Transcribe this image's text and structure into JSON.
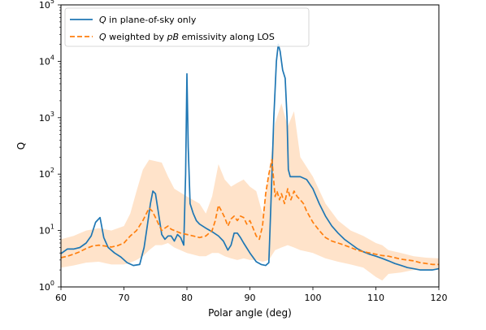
{
  "chart_data": {
    "type": "line",
    "xlabel": "Polar angle (deg)",
    "ylabel": "Q",
    "yscale": "log",
    "xlim": [
      60,
      120
    ],
    "ylim": [
      1,
      100000
    ],
    "x_ticks": [
      60,
      70,
      80,
      90,
      100,
      110,
      120
    ],
    "y_ticks": [
      {
        "value": 1,
        "base": "10",
        "exp": "0"
      },
      {
        "value": 10,
        "base": "10",
        "exp": "1"
      },
      {
        "value": 100,
        "base": "10",
        "exp": "2"
      },
      {
        "value": 1000,
        "base": "10",
        "exp": "3"
      },
      {
        "value": 10000,
        "base": "10",
        "exp": "4"
      },
      {
        "value": 100000,
        "base": "10",
        "exp": "5"
      }
    ],
    "legend_position": "top-left",
    "legend": [
      {
        "parts": [
          {
            "text": "Q",
            "italic": true
          },
          {
            "text": " in plane-of-sky only",
            "italic": false
          }
        ],
        "color": "#1f77b4",
        "style": "solid"
      },
      {
        "parts": [
          {
            "text": "Q",
            "italic": true
          },
          {
            "text": " weighted by ",
            "italic": false
          },
          {
            "text": "pB",
            "italic": true
          },
          {
            "text": " emissivity along LOS",
            "italic": false
          }
        ],
        "color": "#ff7f0e",
        "style": "dashed"
      }
    ],
    "series": [
      {
        "name": "Q in plane-of-sky only",
        "color": "#1f77b4",
        "style": "solid",
        "x": [
          60,
          61,
          62,
          63,
          64,
          64.8,
          65.5,
          66.2,
          66.8,
          67.5,
          68.5,
          69.5,
          70.5,
          71.5,
          72.5,
          73.2,
          73.7,
          74.2,
          74.6,
          75.0,
          75.5,
          76.0,
          76.5,
          77.0,
          77.5,
          78.0,
          78.5,
          79.0,
          79.5,
          79.8,
          80.0,
          80.2,
          80.5,
          81.0,
          81.5,
          82.0,
          83.0,
          84.0,
          85.0,
          85.8,
          86.5,
          87.0,
          87.5,
          88.0,
          88.5,
          89.0,
          90.0,
          91.0,
          91.8,
          92.5,
          93.0,
          93.4,
          93.8,
          94.2,
          94.5,
          94.8,
          95.2,
          95.6,
          95.9,
          96.1,
          96.4,
          97.0,
          98.0,
          99.0,
          100.0,
          101.0,
          102.0,
          103.0,
          104.0,
          105.0,
          106.0,
          107.0,
          108.0,
          109.0,
          110.0,
          111.0,
          112.0,
          113.0,
          114.0,
          115.0,
          116.0,
          117.0,
          118.0,
          119.0,
          120.0
        ],
        "y": [
          3.9,
          4.7,
          4.7,
          5.0,
          6.0,
          8.0,
          14.0,
          17.0,
          7.5,
          5.0,
          4.0,
          3.4,
          2.7,
          2.4,
          2.5,
          5.0,
          12.0,
          30.0,
          50.0,
          45.0,
          20.0,
          8.5,
          7.0,
          8.0,
          8.0,
          6.5,
          8.5,
          7.5,
          5.5,
          100.0,
          6000.0,
          300.0,
          30.0,
          20.0,
          15.0,
          13.0,
          11.0,
          9.5,
          8.0,
          6.5,
          4.5,
          5.5,
          9.0,
          9.0,
          7.5,
          6.0,
          4.0,
          2.8,
          2.5,
          2.4,
          2.7,
          50.0,
          1000.0,
          10000.0,
          20000.0,
          15000.0,
          7000.0,
          5000.0,
          1000.0,
          120.0,
          90.0,
          90.0,
          90.0,
          80.0,
          55.0,
          30.0,
          18.0,
          12.0,
          9.0,
          7.0,
          5.8,
          4.8,
          4.2,
          3.8,
          3.5,
          3.2,
          2.9,
          2.6,
          2.4,
          2.2,
          2.1,
          2.0,
          2.0,
          2.0,
          2.1
        ]
      },
      {
        "name": "Q weighted by pB emissivity along LOS",
        "color": "#ff7f0e",
        "style": "dashed",
        "x": [
          60,
          61,
          62,
          63,
          64,
          65,
          66,
          67,
          68,
          69,
          70,
          71,
          72,
          73,
          74,
          74.5,
          75,
          75.5,
          76,
          76.5,
          77,
          77.5,
          78,
          79,
          80,
          81,
          82,
          83,
          84,
          84.5,
          85,
          85.5,
          86,
          86.5,
          87,
          87.5,
          88,
          88.5,
          89,
          89.5,
          90,
          90.5,
          91,
          91.5,
          92,
          92.5,
          93,
          93.5,
          94,
          94.3,
          94.7,
          95,
          95.5,
          96,
          96.5,
          97,
          97.5,
          98,
          98.5,
          99,
          100,
          101,
          102,
          103,
          104,
          105,
          106,
          107,
          108,
          109,
          110,
          111,
          112,
          113,
          114,
          115,
          116,
          117,
          118,
          119,
          120
        ],
        "y": [
          3.3,
          3.5,
          3.8,
          4.2,
          4.8,
          5.3,
          5.5,
          5.3,
          5.1,
          5.4,
          6.0,
          8.0,
          10.0,
          15.0,
          25.0,
          22.0,
          17.0,
          13.0,
          10.0,
          11.0,
          12.0,
          10.5,
          10.0,
          9.0,
          8.5,
          8.0,
          7.5,
          8.0,
          10.0,
          15.0,
          28.0,
          22.0,
          17.0,
          12.0,
          16.0,
          18.0,
          15.0,
          18.0,
          17.0,
          13.0,
          15.0,
          11.0,
          8.0,
          7.0,
          12.0,
          45.0,
          100.0,
          180.0,
          40.0,
          50.0,
          35.0,
          45.0,
          30.0,
          55.0,
          35.0,
          50.0,
          40.0,
          35.0,
          30.0,
          22.0,
          14.0,
          10.0,
          7.5,
          6.5,
          6.0,
          5.5,
          5.0,
          4.5,
          4.2,
          4.0,
          3.8,
          3.6,
          3.5,
          3.3,
          3.1,
          3.0,
          2.9,
          2.7,
          2.6,
          2.5,
          2.5
        ]
      }
    ],
    "band": {
      "color": "#ff7f0e",
      "x": [
        60,
        62,
        64,
        66,
        68,
        70,
        71,
        72,
        73,
        74,
        75,
        76,
        77,
        78,
        80,
        82,
        83,
        84,
        85,
        86,
        87,
        88,
        89,
        90,
        91,
        92,
        93,
        94,
        95,
        96,
        97,
        98,
        100,
        102,
        104,
        106,
        108,
        110,
        111,
        112,
        114,
        116,
        118,
        120
      ],
      "upper": [
        7.0,
        8.0,
        10.0,
        11.0,
        10.0,
        12.0,
        20.0,
        50.0,
        120.0,
        180.0,
        170.0,
        160.0,
        90.0,
        55.0,
        40.0,
        30.0,
        20.0,
        40.0,
        150.0,
        80.0,
        60.0,
        70.0,
        80.0,
        60.0,
        50.0,
        20.0,
        100.0,
        800.0,
        1800.0,
        700.0,
        1300.0,
        200.0,
        90.0,
        30.0,
        15.0,
        10.0,
        8.0,
        6.0,
        5.5,
        4.5,
        4.0,
        3.5,
        3.3,
        3.2
      ],
      "lower": [
        2.2,
        2.4,
        2.7,
        2.8,
        2.5,
        2.5,
        2.7,
        3.0,
        3.5,
        4.5,
        5.5,
        5.5,
        6.0,
        5.0,
        4.0,
        3.5,
        3.5,
        4.0,
        4.0,
        3.5,
        3.2,
        3.0,
        3.2,
        3.0,
        3.0,
        2.8,
        3.0,
        4.5,
        5.0,
        5.5,
        5.0,
        4.5,
        4.0,
        3.2,
        2.8,
        2.5,
        2.2,
        1.5,
        1.3,
        1.7,
        1.8,
        2.0,
        2.0,
        2.1
      ]
    }
  }
}
